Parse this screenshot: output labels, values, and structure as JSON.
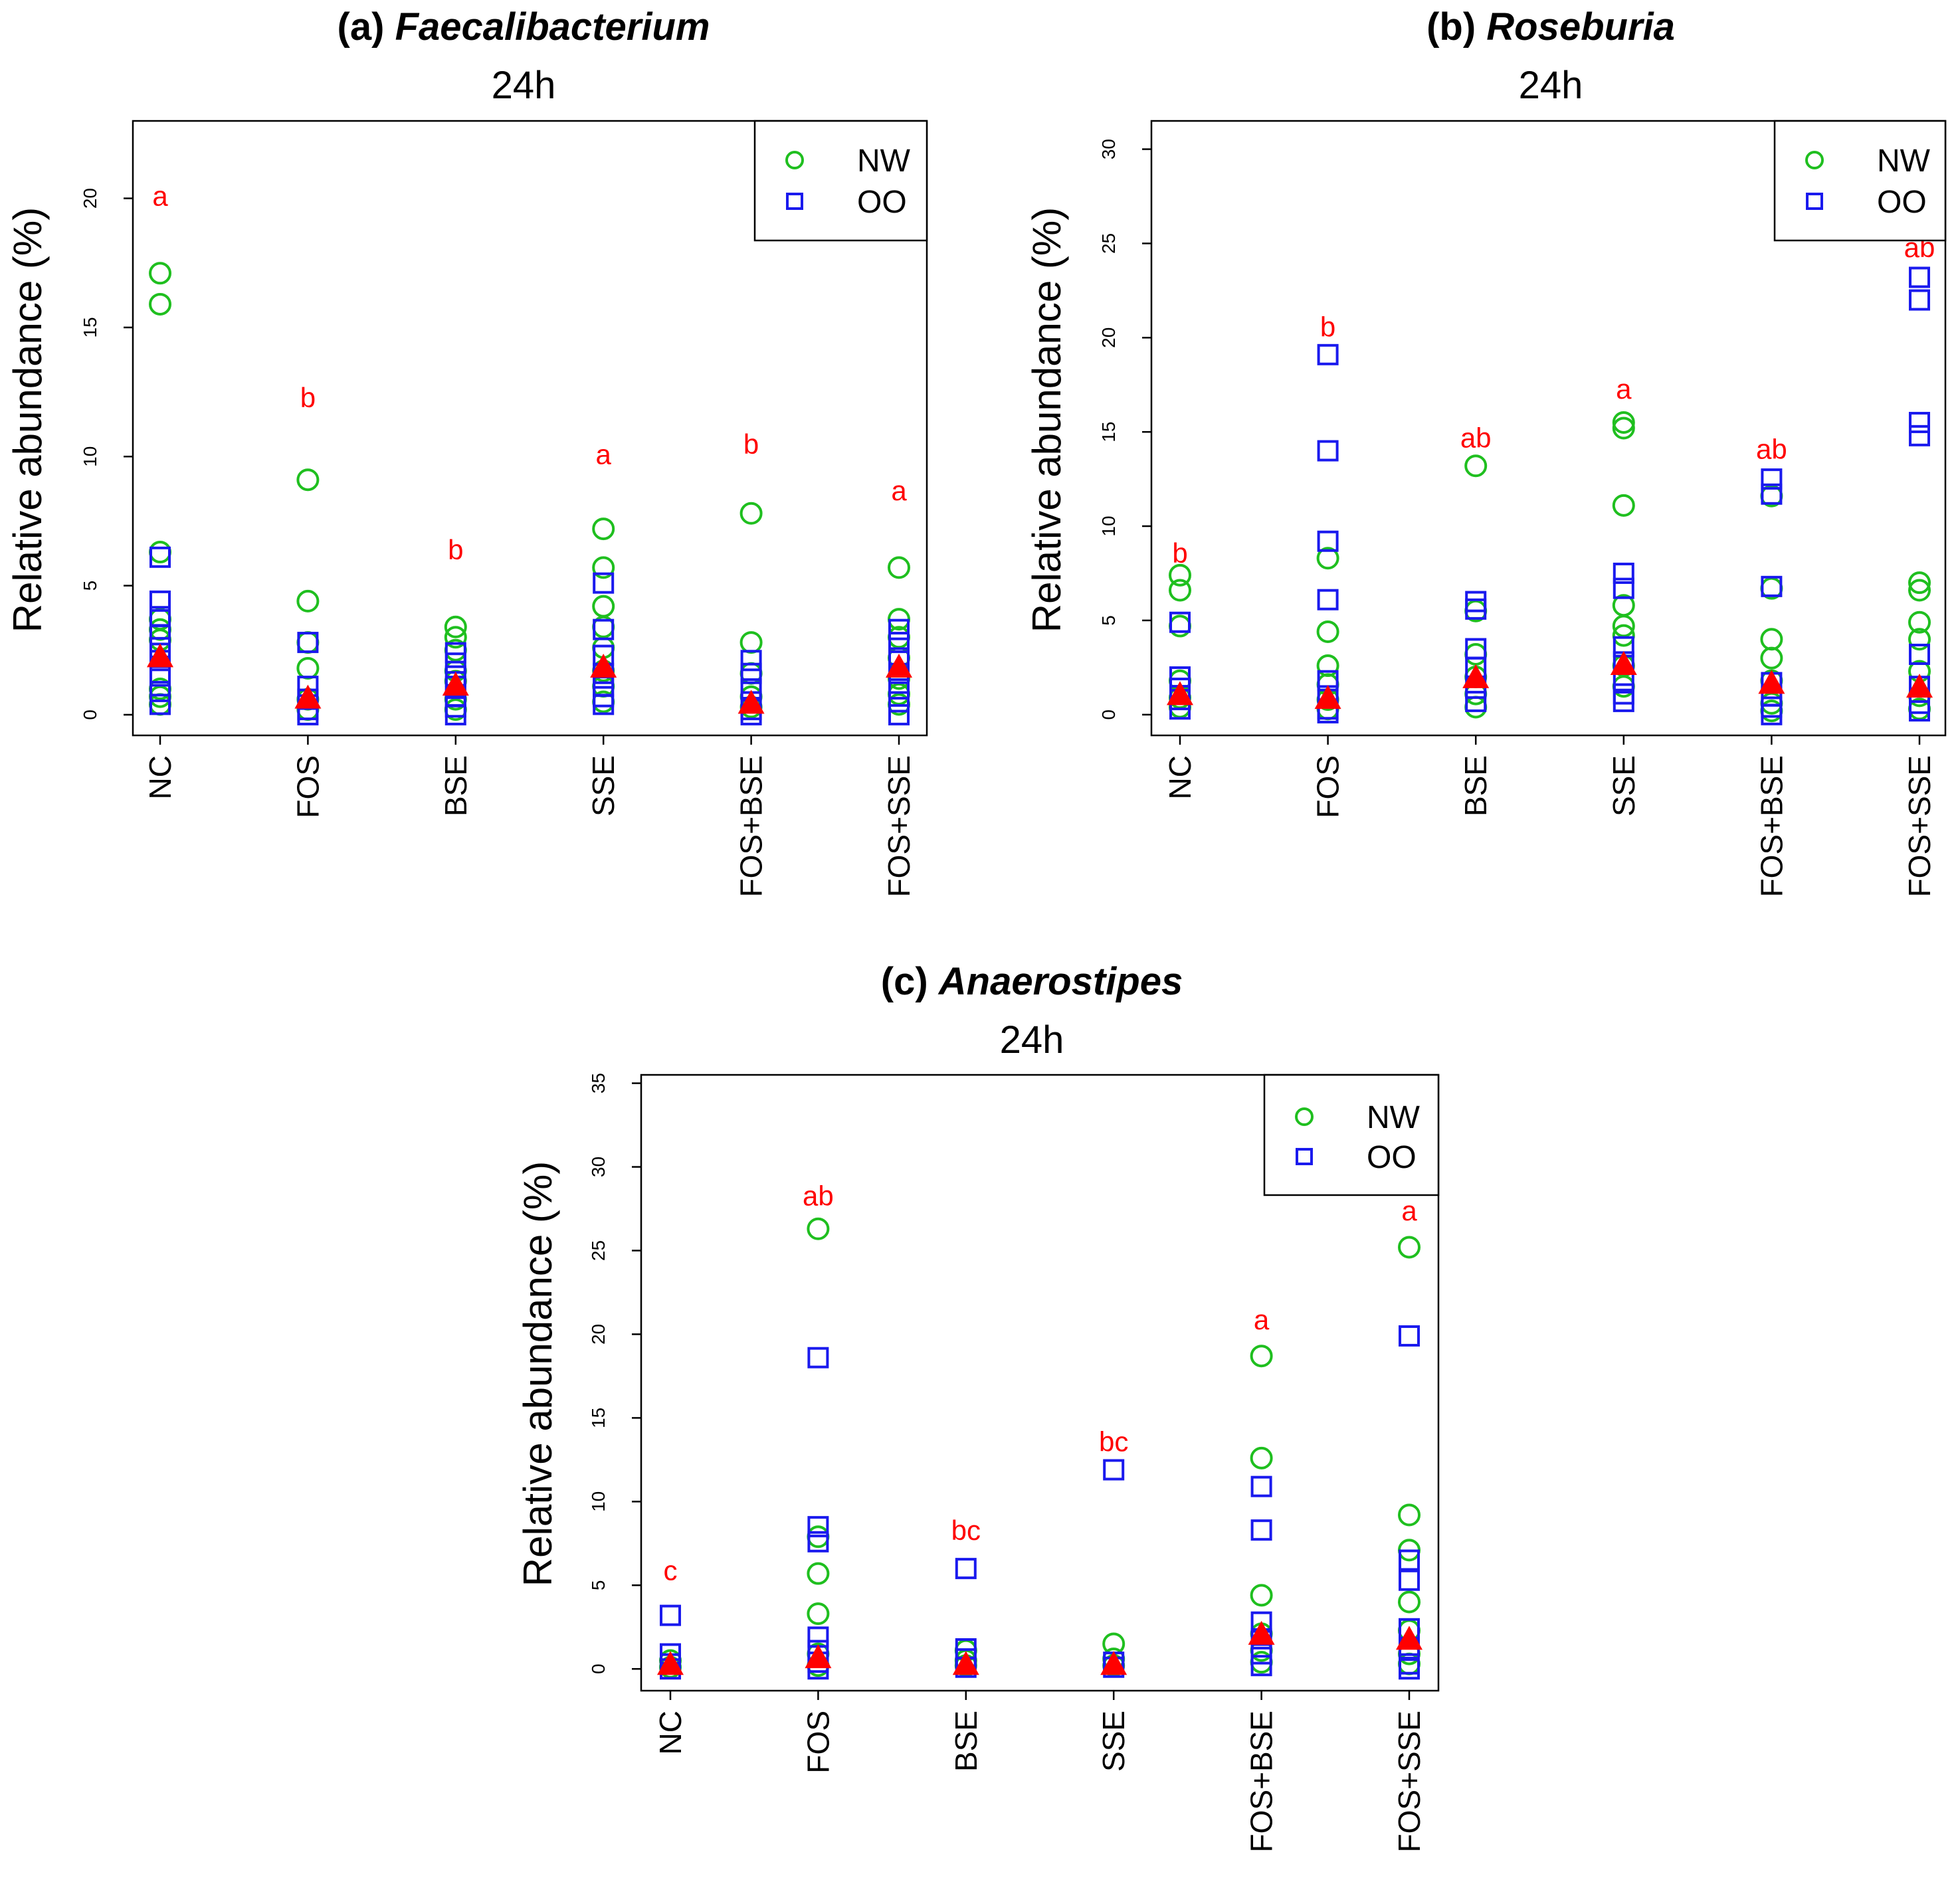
{
  "colors": {
    "nw": "#1fbf1f",
    "oo": "#1a1aee",
    "median": "#ff0000",
    "sig": "#ff0000"
  },
  "chart_data": [
    {
      "type": "scatter",
      "panel_label": "(a)",
      "genus": "Faecalibacterium",
      "subtitle": "24h",
      "ylabel": "Relative abundance (%)",
      "ylim": [
        -0.8,
        23
      ],
      "yticks": [
        "0",
        "5",
        "10",
        "15",
        "20"
      ],
      "categories": [
        "NC",
        "FOS",
        "BSE",
        "SSE",
        "FOS+BSE",
        "FOS+SSE"
      ],
      "legend": {
        "position": "top-right",
        "entries": [
          "NW",
          "OO"
        ]
      },
      "significance": [
        "a",
        "b",
        "b",
        "a",
        "b",
        "a"
      ],
      "sig_y": [
        20.1,
        12.3,
        6.4,
        10.1,
        10.5,
        8.7
      ],
      "series": [
        {
          "name": "NW",
          "marker": "circle",
          "values": [
            [
              17.1,
              15.9,
              6.3,
              3.7,
              3.3,
              2.9,
              1.0,
              0.7,
              0.4
            ],
            [
              9.1,
              4.4,
              2.8,
              1.8,
              0.6,
              0.2
            ],
            [
              3.4,
              3.0,
              2.5,
              1.7,
              1.3,
              0.6,
              0.2
            ],
            [
              7.2,
              5.7,
              4.2,
              3.4,
              2.6,
              1.7,
              1.1,
              0.5
            ],
            [
              7.8,
              2.8,
              1.6,
              0.7,
              0.3
            ],
            [
              5.7,
              3.7,
              3.0,
              2.2,
              1.4,
              0.8,
              0.4
            ]
          ]
        },
        {
          "name": "OO",
          "marker": "square",
          "values": [
            [
              6.1,
              4.4,
              3.8,
              3.1,
              2.6,
              2.1,
              1.5,
              0.9,
              0.4
            ],
            [
              2.8,
              1.1,
              0.6,
              0.2,
              0.0
            ],
            [
              2.4,
              2.0,
              1.5,
              1.1,
              0.7,
              0.3,
              0.0
            ],
            [
              5.1,
              3.3,
              2.3,
              1.6,
              1.1,
              0.7,
              0.4
            ],
            [
              2.1,
              1.6,
              1.0,
              0.5,
              0.2,
              0.0
            ],
            [
              3.3,
              2.8,
              2.2,
              1.6,
              1.0,
              0.5,
              0.0
            ]
          ]
        },
        {
          "name": "Median",
          "marker": "triangle",
          "values": [
            2.2,
            0.6,
            1.1,
            1.8,
            0.4,
            1.8
          ]
        }
      ]
    },
    {
      "type": "scatter",
      "panel_label": "(b)",
      "genus": "Roseburia",
      "subtitle": "24h",
      "ylabel": "Relative abundance (%)",
      "ylim": [
        -1.1,
        31.5
      ],
      "yticks": [
        "0",
        "5",
        "10",
        "15",
        "20",
        "25",
        "30"
      ],
      "categories": [
        "NC",
        "FOS",
        "BSE",
        "SSE",
        "FOS+BSE",
        "FOS+SSE"
      ],
      "legend": {
        "position": "top-right",
        "entries": [
          "NW",
          "OO"
        ]
      },
      "significance": [
        "b",
        "b",
        "ab",
        "a",
        "ab",
        "ab"
      ],
      "sig_y": [
        8.6,
        20.6,
        14.7,
        17.3,
        14.1,
        24.8
      ],
      "series": [
        {
          "name": "NW",
          "marker": "circle",
          "values": [
            [
              7.4,
              6.6,
              4.7,
              1.8,
              0.9,
              0.4
            ],
            [
              8.3,
              4.4,
              2.6,
              1.6,
              0.8,
              0.3
            ],
            [
              13.2,
              5.5,
              3.2,
              2.0,
              1.1,
              0.4
            ],
            [
              15.5,
              15.2,
              11.1,
              5.8,
              4.7,
              4.2,
              2.6,
              1.5
            ],
            [
              11.6,
              6.7,
              4.0,
              3.0,
              1.8,
              0.6,
              0.2
            ],
            [
              7.0,
              6.6,
              4.9,
              4.0,
              2.3,
              1.0,
              0.3
            ]
          ]
        },
        {
          "name": "OO",
          "marker": "square",
          "values": [
            [
              4.9,
              2.0,
              1.4,
              0.8,
              0.3
            ],
            [
              19.1,
              14.0,
              9.2,
              6.1,
              1.8,
              1.0,
              0.3,
              0.1
            ],
            [
              6.0,
              5.6,
              3.5,
              2.5,
              1.4,
              0.7
            ],
            [
              7.5,
              6.7,
              3.6,
              2.8,
              1.8,
              1.1,
              0.7
            ],
            [
              12.5,
              11.7,
              6.8,
              1.7,
              1.0,
              0.4,
              0.0
            ],
            [
              23.2,
              22.0,
              15.5,
              14.8,
              3.2,
              1.5,
              0.6,
              0.2
            ]
          ]
        },
        {
          "name": "Median",
          "marker": "triangle",
          "values": [
            1.0,
            0.8,
            1.9,
            2.6,
            1.6,
            1.4
          ]
        }
      ]
    },
    {
      "type": "scatter",
      "panel_label": "(c)",
      "genus": "Anaerostipes",
      "subtitle": "24h",
      "ylabel": "Relative abundance (%)",
      "ylim": [
        -1.3,
        35.5
      ],
      "yticks": [
        "0",
        "5",
        "10",
        "15",
        "20",
        "25",
        "30",
        "35"
      ],
      "categories": [
        "NC",
        "FOS",
        "BSE",
        "SSE",
        "FOS+BSE",
        "FOS+SSE"
      ],
      "legend": {
        "position": "top-right",
        "entries": [
          "NW",
          "OO"
        ]
      },
      "significance": [
        "c",
        "ab",
        "bc",
        "bc",
        "a",
        "a"
      ],
      "sig_y": [
        5.9,
        28.3,
        8.3,
        13.6,
        20.9,
        27.4
      ],
      "series": [
        {
          "name": "NW",
          "marker": "circle",
          "values": [
            [
              0.5,
              0.1
            ],
            [
              26.3,
              7.9,
              5.7,
              3.3,
              0.9,
              0.2
            ],
            [
              1.1,
              0.5,
              0.2
            ],
            [
              1.5,
              0.6,
              0.2
            ],
            [
              18.7,
              12.6,
              4.4,
              2.1,
              1.1,
              0.4
            ],
            [
              25.2,
              9.2,
              7.1,
              4.0,
              2.3,
              0.9,
              0.3
            ]
          ]
        },
        {
          "name": "OO",
          "marker": "square",
          "values": [
            [
              3.2,
              0.9,
              0.3,
              0.0
            ],
            [
              18.6,
              8.5,
              7.6,
              1.9,
              1.1,
              0.4,
              0.0
            ],
            [
              6.0,
              1.2,
              0.6,
              0.1
            ],
            [
              11.9,
              0.4,
              0.1
            ],
            [
              10.9,
              8.3,
              2.8,
              1.8,
              0.9,
              0.2
            ],
            [
              19.9,
              6.5,
              5.3,
              2.4,
              1.2,
              0.3,
              0.0
            ]
          ]
        },
        {
          "name": "Median",
          "marker": "triangle",
          "values": [
            0.2,
            0.6,
            0.2,
            0.2,
            2.0,
            1.7
          ]
        }
      ]
    }
  ]
}
